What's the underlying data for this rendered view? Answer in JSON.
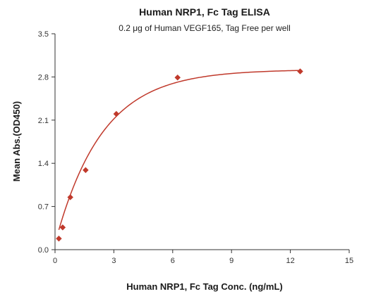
{
  "chart_data": {
    "type": "scatter",
    "title": "Human NRP1, Fc Tag ELISA",
    "subtitle": "0.2 μg of Human VEGF165, Tag Free per well",
    "xlabel": "Human NRP1, Fc Tag Conc. (ng/mL)",
    "ylabel": "Mean Abs.(OD450)",
    "xlim": [
      0,
      15
    ],
    "ylim": [
      0,
      3.5
    ],
    "x_ticks": [
      "0",
      "3",
      "6",
      "9",
      "12",
      "15"
    ],
    "y_ticks": [
      "0.0",
      "0.7",
      "1.4",
      "2.1",
      "2.8",
      "3.5"
    ],
    "grid": false,
    "series": [
      {
        "points": [
          {
            "x": 0.195,
            "y": 0.18
          },
          {
            "x": 0.39,
            "y": 0.36
          },
          {
            "x": 0.78,
            "y": 0.85
          },
          {
            "x": 1.56,
            "y": 1.29
          },
          {
            "x": 3.125,
            "y": 2.2
          },
          {
            "x": 6.25,
            "y": 2.79
          },
          {
            "x": 12.5,
            "y": 2.89
          }
        ],
        "fit": {
          "model": "saturation",
          "ymax": 2.92,
          "k": 0.42,
          "y0": 0.1
        },
        "color": "#c0392b"
      }
    ]
  }
}
